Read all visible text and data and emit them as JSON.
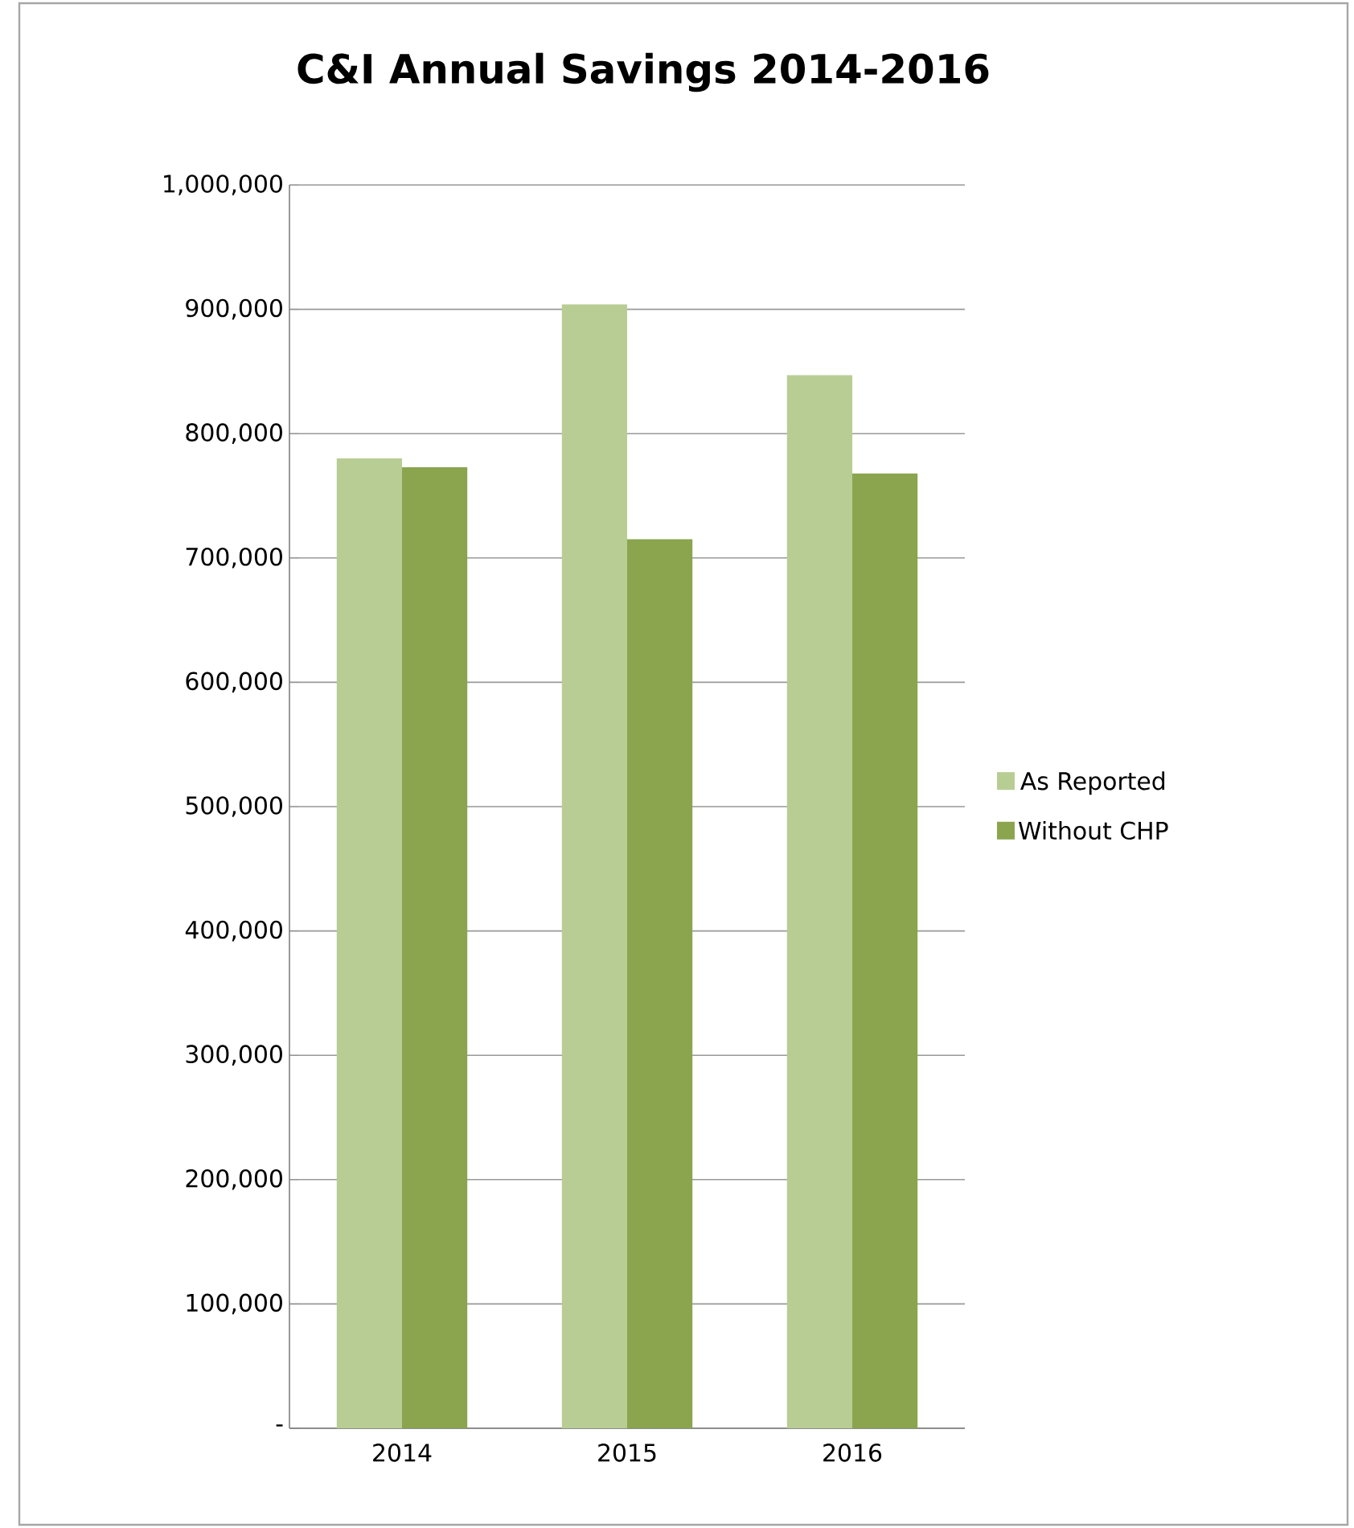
{
  "chart_data": {
    "type": "bar",
    "title": "C&I Annual Savings 2014-2016",
    "categories": [
      "2014",
      "2015",
      "2016"
    ],
    "series": [
      {
        "name": "As Reported",
        "color": "#b8cd93",
        "values": [
          780000,
          904000,
          847000
        ]
      },
      {
        "name": "Without CHP",
        "color": "#8aa54e",
        "values": [
          773000,
          715000,
          768000
        ]
      }
    ],
    "ylim": [
      0,
      1000000
    ],
    "yticks": [
      {
        "value": 0,
        "label": "-"
      },
      {
        "value": 100000,
        "label": "100,000"
      },
      {
        "value": 200000,
        "label": "200,000"
      },
      {
        "value": 300000,
        "label": "300,000"
      },
      {
        "value": 400000,
        "label": "400,000"
      },
      {
        "value": 500000,
        "label": "500,000"
      },
      {
        "value": 600000,
        "label": "600,000"
      },
      {
        "value": 700000,
        "label": "700,000"
      },
      {
        "value": 800000,
        "label": "800,000"
      },
      {
        "value": 900000,
        "label": "900,000"
      },
      {
        "value": 1000000,
        "label": "1,000,000"
      }
    ],
    "grid": "y",
    "legend": "right"
  }
}
